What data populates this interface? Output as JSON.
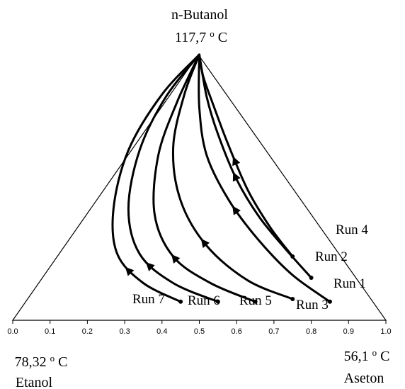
{
  "chart_data": {
    "type": "ternary-residue-curve-map",
    "vertices": {
      "top": {
        "name": "n-Butanol",
        "temp_prefix": "117,7 ",
        "temp_deg": "o",
        "temp_unit": "C"
      },
      "left": {
        "name": "Etanol",
        "temp_prefix": "78,32 ",
        "temp_deg": "o",
        "temp_unit": "C"
      },
      "right": {
        "name": "Aseton",
        "temp_prefix": "56,1 ",
        "temp_deg": "o",
        "temp_unit": "C"
      }
    },
    "xaxis": {
      "range": [
        0,
        1
      ],
      "ticks": [
        "0.0",
        "0.1",
        "0.2",
        "0.3",
        "0.4",
        "0.5",
        "0.6",
        "0.7",
        "0.8",
        "0.9",
        "1.0"
      ]
    },
    "curves": [
      {
        "label": "Run 4",
        "points": [
          [
            0.75,
            0.24
          ],
          [
            0.69,
            0.35
          ],
          [
            0.63,
            0.49
          ],
          [
            0.575,
            0.67
          ],
          [
            0.535,
            0.82
          ],
          [
            0.51,
            0.92
          ],
          [
            0.5,
            1.0
          ]
        ],
        "arrow_at": 0.5
      },
      {
        "label": "Run 2",
        "points": [
          [
            0.8,
            0.16
          ],
          [
            0.73,
            0.27
          ],
          [
            0.66,
            0.39
          ],
          [
            0.6,
            0.53
          ],
          [
            0.55,
            0.7
          ],
          [
            0.52,
            0.84
          ],
          [
            0.5,
            1.0
          ]
        ],
        "arrow_at": 0.5
      },
      {
        "label": "Run 1",
        "points": [
          [
            0.85,
            0.07
          ],
          [
            0.75,
            0.17
          ],
          [
            0.66,
            0.3
          ],
          [
            0.58,
            0.45
          ],
          [
            0.52,
            0.62
          ],
          [
            0.5,
            0.8
          ],
          [
            0.5,
            1.0
          ]
        ],
        "arrow_at": 0.45
      },
      {
        "label": "Run 3",
        "points": [
          [
            0.75,
            0.08
          ],
          [
            0.63,
            0.15
          ],
          [
            0.52,
            0.28
          ],
          [
            0.45,
            0.45
          ],
          [
            0.43,
            0.65
          ],
          [
            0.46,
            0.85
          ],
          [
            0.5,
            1.0
          ]
        ],
        "arrow_at": 0.35
      },
      {
        "label": "Run 5",
        "points": [
          [
            0.65,
            0.07
          ],
          [
            0.53,
            0.14
          ],
          [
            0.43,
            0.24
          ],
          [
            0.38,
            0.4
          ],
          [
            0.39,
            0.62
          ],
          [
            0.44,
            0.82
          ],
          [
            0.5,
            1.0
          ]
        ],
        "arrow_at": 0.3
      },
      {
        "label": "Run 6",
        "points": [
          [
            0.55,
            0.07
          ],
          [
            0.43,
            0.14
          ],
          [
            0.34,
            0.25
          ],
          [
            0.31,
            0.42
          ],
          [
            0.34,
            0.64
          ],
          [
            0.41,
            0.84
          ],
          [
            0.5,
            1.0
          ]
        ],
        "arrow_at": 0.25
      },
      {
        "label": "Run 7",
        "points": [
          [
            0.45,
            0.07
          ],
          [
            0.35,
            0.14
          ],
          [
            0.28,
            0.25
          ],
          [
            0.27,
            0.42
          ],
          [
            0.31,
            0.64
          ],
          [
            0.4,
            0.85
          ],
          [
            0.5,
            1.0
          ]
        ],
        "arrow_at": 0.2
      }
    ]
  }
}
